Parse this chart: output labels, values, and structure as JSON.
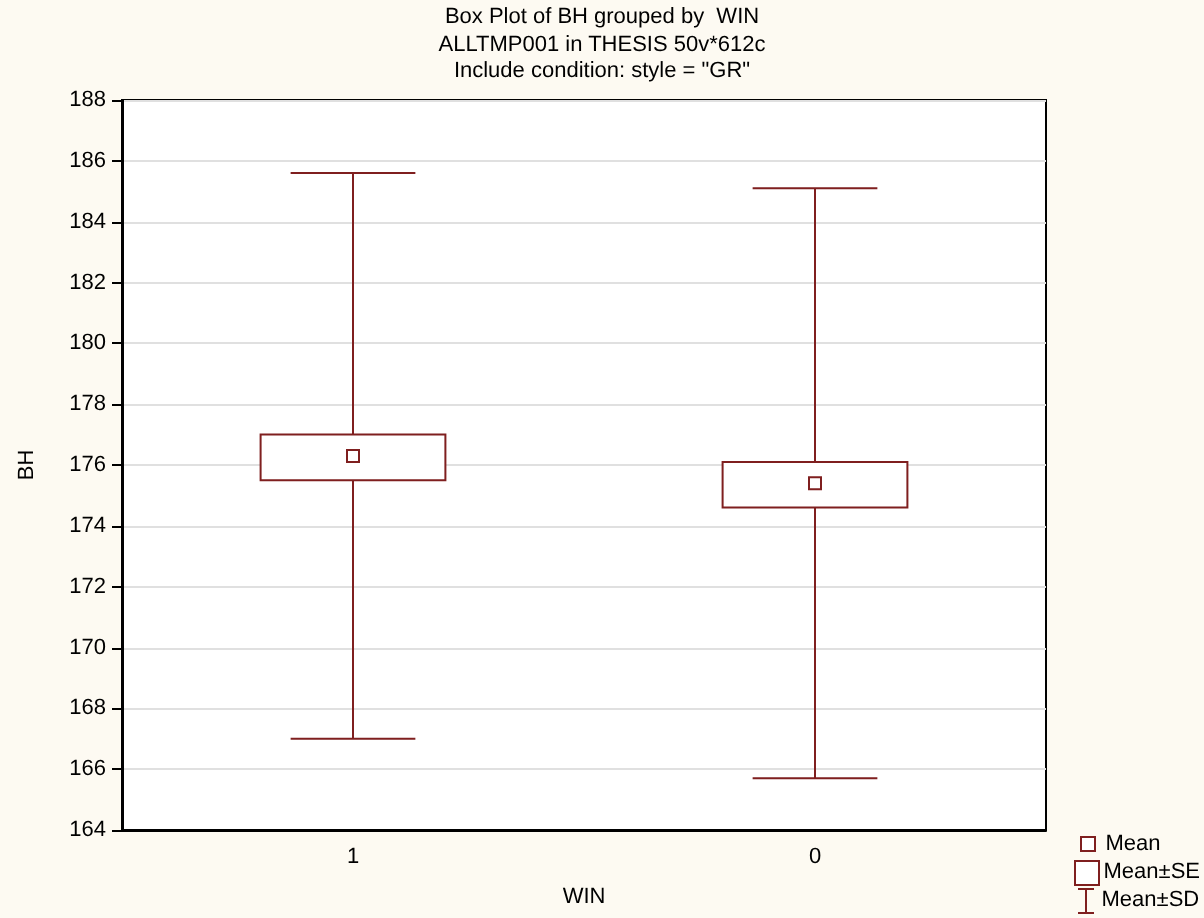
{
  "chart_data": {
    "type": "box",
    "title": "Box Plot of BH grouped by  WIN",
    "subtitle": "ALLTMP001 in THESIS 50v*612c\nInclude condition: style = \"GR\"",
    "xlabel": "WIN",
    "ylabel": "BH",
    "categories": [
      "1",
      "0"
    ],
    "color": "#7f1f1f",
    "boxes": [
      {
        "low": 167.0,
        "q1": 175.5,
        "median": 176.3,
        "q3": 177.0,
        "high": 185.6
      },
      {
        "low": 165.7,
        "q1": 174.6,
        "median": 175.4,
        "q3": 176.1,
        "high": 185.1
      }
    ],
    "annotations": [
      "Mean",
      "Mean±SE",
      "Mean±SD"
    ],
    "ylim": [
      164,
      188
    ],
    "yticks": [
      164,
      166,
      168,
      170,
      172,
      174,
      176,
      178,
      180,
      182,
      184,
      186,
      188
    ],
    "grid": "y"
  }
}
